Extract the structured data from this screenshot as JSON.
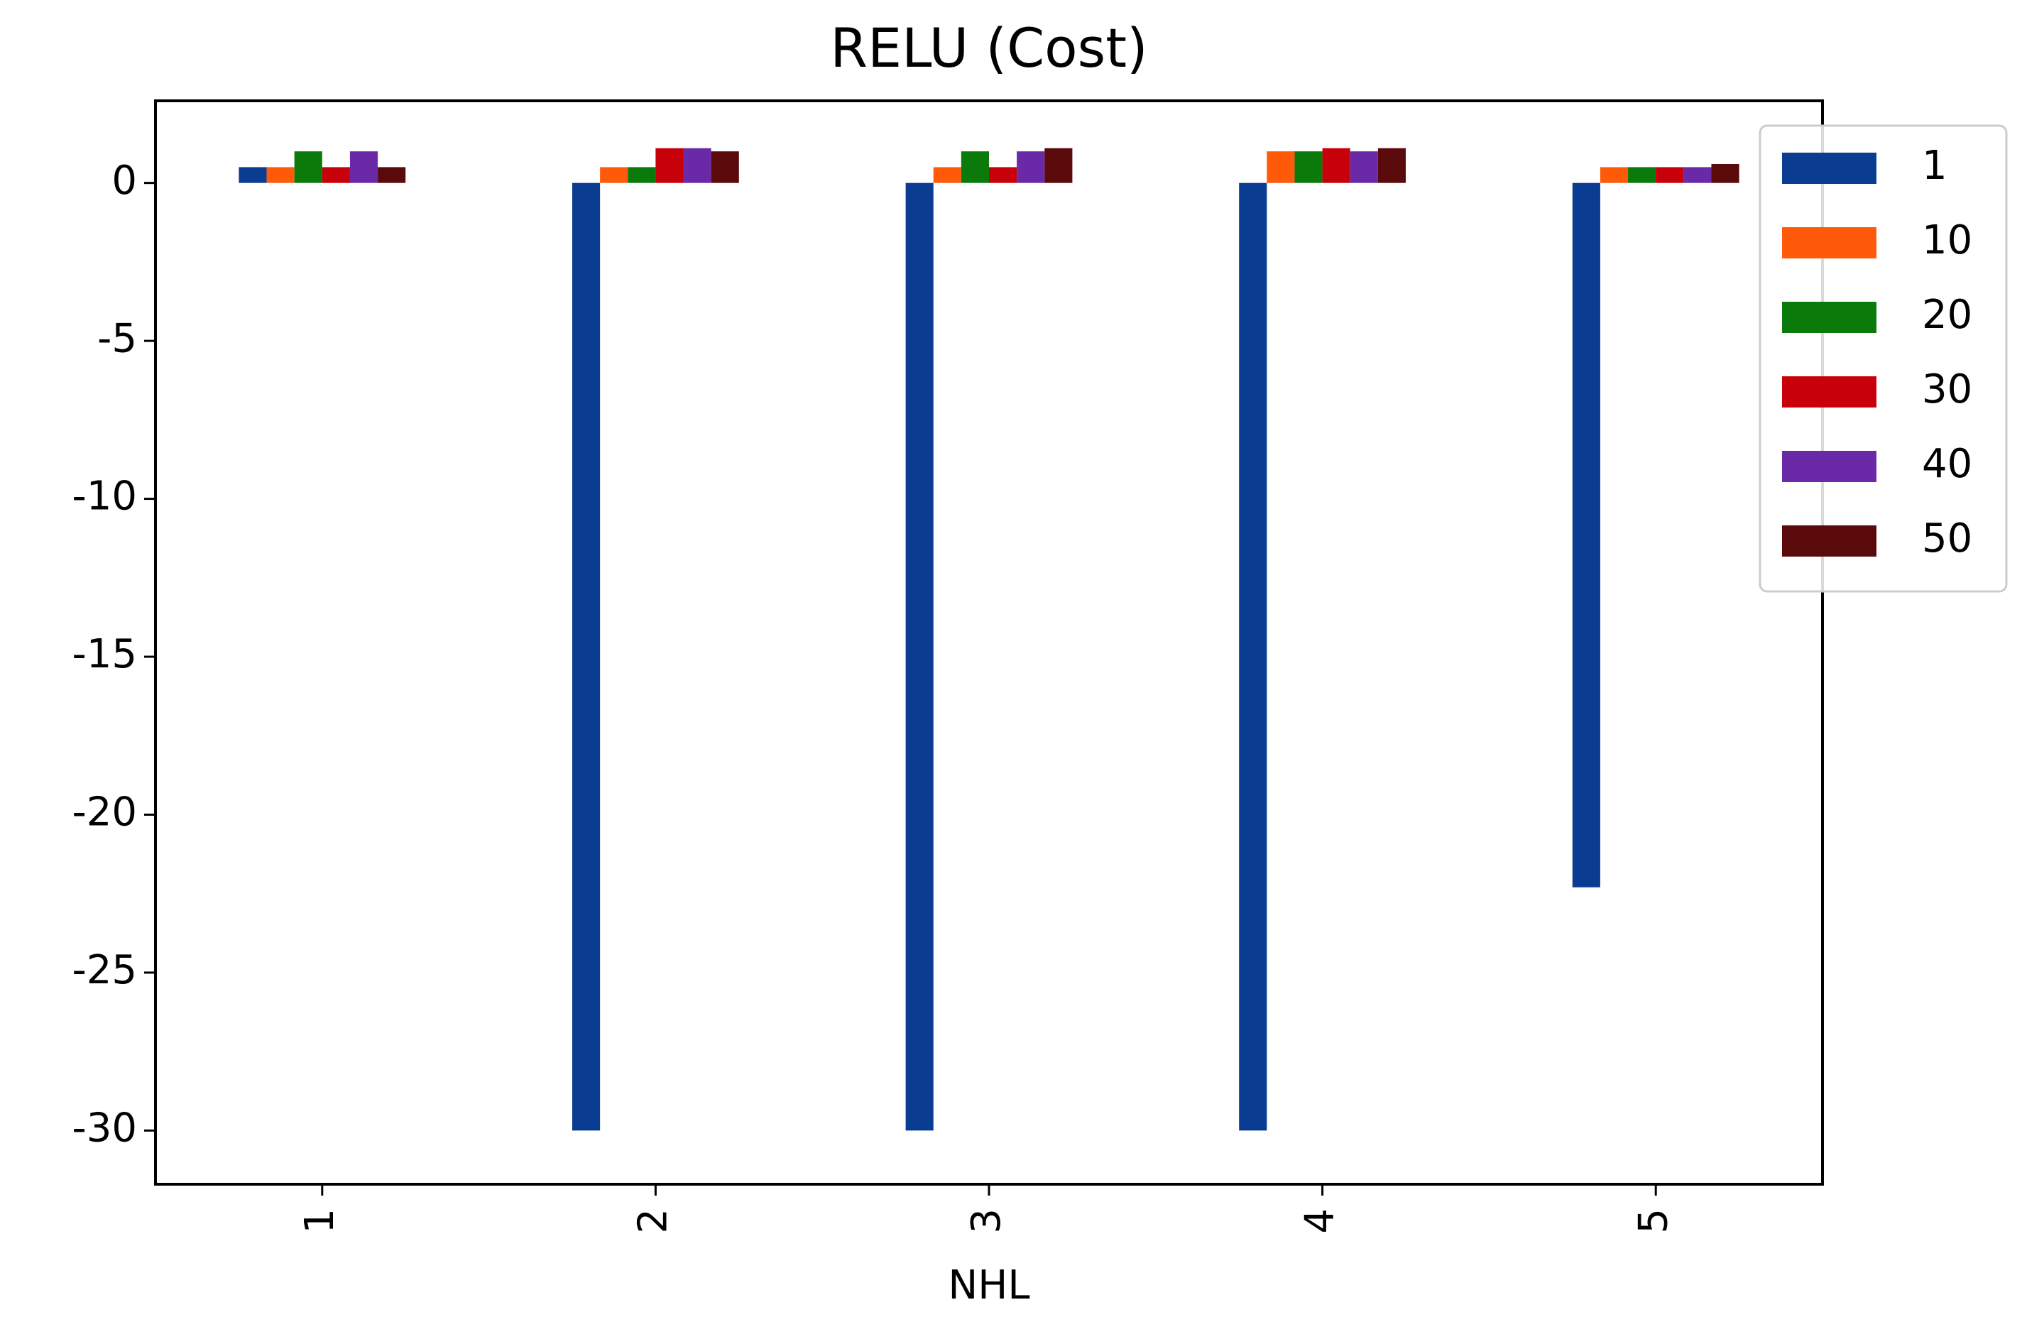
{
  "chart_data": {
    "type": "bar",
    "title": "RELU (Cost)",
    "xlabel": "NHL",
    "categories": [
      "1",
      "2",
      "3",
      "4",
      "5"
    ],
    "series": [
      {
        "name": "1",
        "color": "#0a3d91",
        "values": [
          0.5,
          -30,
          -30,
          -30,
          -22.3
        ]
      },
      {
        "name": "10",
        "color": "#ff5a0a",
        "values": [
          0.5,
          0.5,
          0.5,
          1.0,
          0.5
        ]
      },
      {
        "name": "20",
        "color": "#0a7a0a",
        "values": [
          1.0,
          0.5,
          1.0,
          1.0,
          0.5
        ]
      },
      {
        "name": "30",
        "color": "#c8000a",
        "values": [
          0.5,
          1.1,
          0.5,
          1.1,
          0.5
        ]
      },
      {
        "name": "40",
        "color": "#6a2aa8",
        "values": [
          1.0,
          1.1,
          1.0,
          1.0,
          0.5
        ]
      },
      {
        "name": "50",
        "color": "#5a0a0a",
        "values": [
          0.5,
          1.0,
          1.1,
          1.1,
          0.6
        ]
      }
    ],
    "ylim": [
      -31.7,
      2.6
    ],
    "yticks": [
      -30,
      -25,
      -20,
      -15,
      -10,
      -5,
      0
    ],
    "xtick_rotation": 90,
    "grid": false,
    "legend": "upper right"
  }
}
